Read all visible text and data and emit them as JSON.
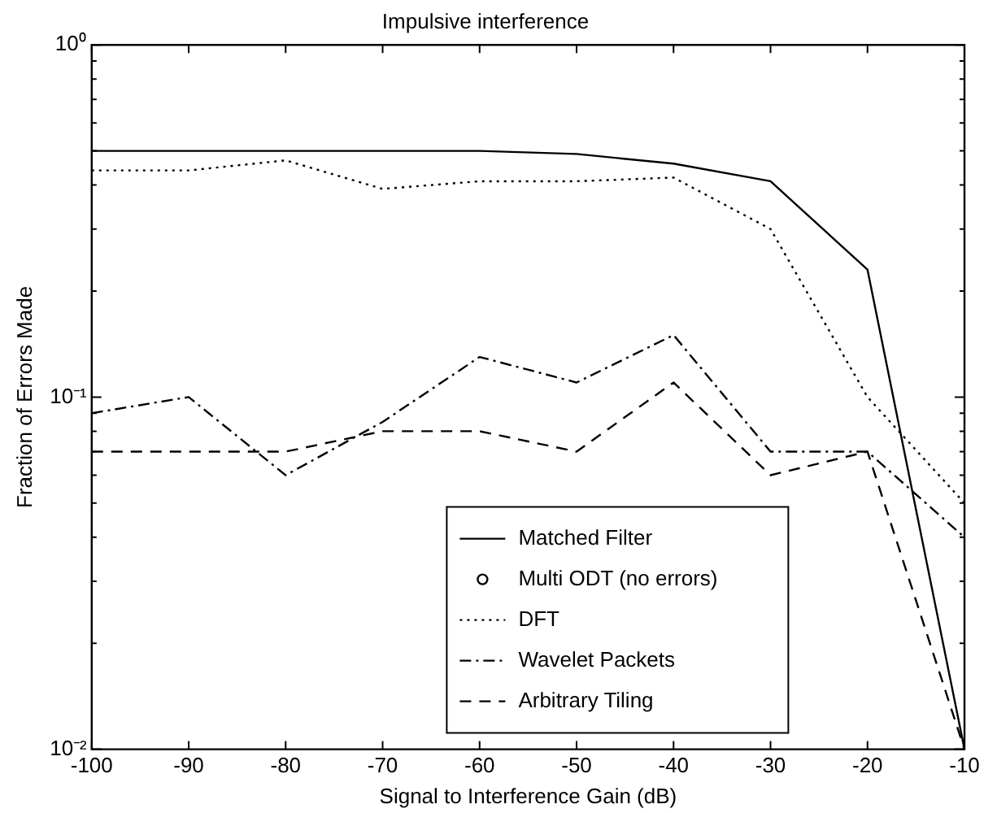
{
  "chart_data": {
    "type": "line",
    "title": "Impulsive interference",
    "xlabel": "Signal to Interference Gain (dB)",
    "ylabel": "Fraction of Errors Made",
    "x": [
      -100,
      -90,
      -80,
      -70,
      -60,
      -50,
      -40,
      -30,
      -20,
      -10
    ],
    "series": [
      {
        "name": "Matched Filter",
        "color": "#000000",
        "line_style": "solid",
        "marker": "none",
        "values": [
          0.5,
          0.5,
          0.5,
          0.5,
          0.5,
          0.49,
          0.46,
          0.41,
          0.23,
          0.01
        ]
      },
      {
        "name": "Multi ODT (no errors)",
        "color": "#000000",
        "line_style": "none",
        "marker": "circle",
        "values": [
          null,
          null,
          null,
          null,
          null,
          null,
          null,
          null,
          null,
          null
        ]
      },
      {
        "name": "DFT",
        "color": "#000000",
        "line_style": "dotted",
        "marker": "none",
        "values": [
          0.44,
          0.44,
          0.47,
          0.39,
          0.41,
          0.41,
          0.42,
          0.3,
          0.1,
          0.05
        ]
      },
      {
        "name": "Wavelet Packets",
        "color": "#000000",
        "line_style": "dashdot",
        "marker": "none",
        "values": [
          0.09,
          0.1,
          0.06,
          0.085,
          0.13,
          0.11,
          0.15,
          0.07,
          0.07,
          0.04
        ]
      },
      {
        "name": "Arbitrary Tiling",
        "color": "#000000",
        "line_style": "dashed",
        "marker": "none",
        "values": [
          0.07,
          0.07,
          0.07,
          0.08,
          0.08,
          0.07,
          0.11,
          0.06,
          0.07,
          0.01
        ]
      }
    ],
    "log": "y",
    "xlim": [
      -100,
      -10
    ],
    "ylim": [
      0.01,
      1
    ],
    "xticks": [
      -100,
      -90,
      -80,
      -70,
      -60,
      -50,
      -40,
      -30,
      -20,
      -10
    ],
    "yticks": [
      {
        "value": 0.01,
        "label": "10⁻²"
      },
      {
        "value": 0.02,
        "label": null
      },
      {
        "value": 0.03,
        "label": null
      },
      {
        "value": 0.04,
        "label": null
      },
      {
        "value": 0.05,
        "label": null
      },
      {
        "value": 0.06,
        "label": null
      },
      {
        "value": 0.07,
        "label": null
      },
      {
        "value": 0.08,
        "label": null
      },
      {
        "value": 0.09,
        "label": null
      },
      {
        "value": 0.1,
        "label": "10⁻¹"
      },
      {
        "value": 0.2,
        "label": null
      },
      {
        "value": 0.3,
        "label": null
      },
      {
        "value": 0.4,
        "label": null
      },
      {
        "value": 0.5,
        "label": null
      },
      {
        "value": 0.6,
        "label": null
      },
      {
        "value": 0.7,
        "label": null
      },
      {
        "value": 0.8,
        "label": null
      },
      {
        "value": 0.9,
        "label": null
      },
      {
        "value": 1,
        "label": "10⁰"
      }
    ],
    "legend": "bottom"
  }
}
